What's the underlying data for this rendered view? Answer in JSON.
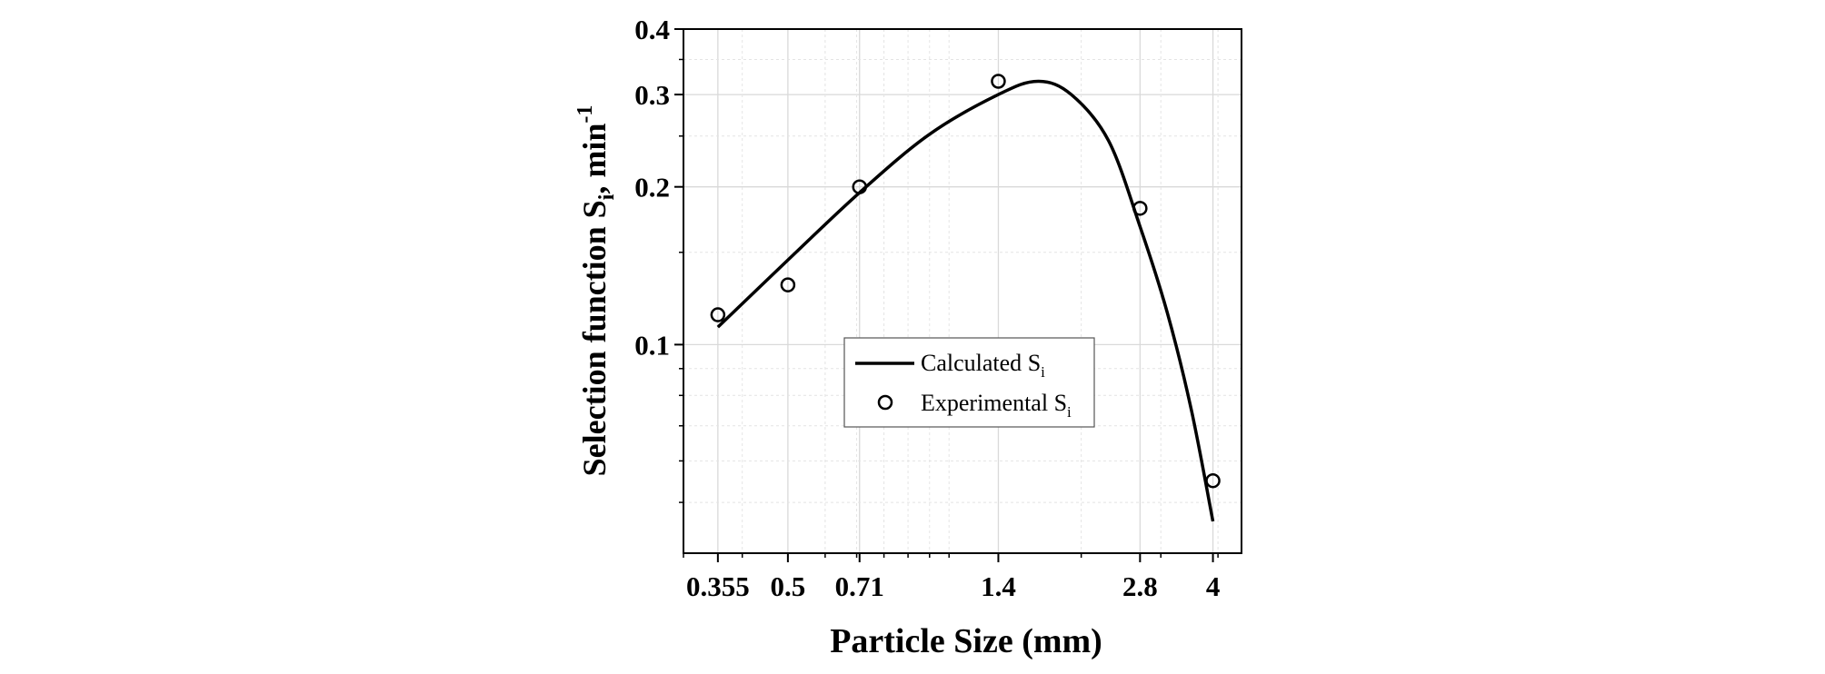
{
  "chart_data": {
    "type": "line",
    "title": "",
    "xlabel": "Particle Size (mm)",
    "ylabel": {
      "main": "Selection function S",
      "subscript": "i",
      "unit": ", min",
      "superscript": "-1"
    },
    "x_scale": "log",
    "y_scale": "log",
    "xlim": [
      0.3,
      4.6
    ],
    "ylim": [
      0.04,
      0.4
    ],
    "x_ticks": [
      0.355,
      0.5,
      0.71,
      1.4,
      2.8,
      4
    ],
    "x_tick_labels": [
      "0.355",
      "0.5",
      "0.71",
      "1.4",
      "2.8",
      "4"
    ],
    "y_ticks": [
      0.1,
      0.2,
      0.3,
      0.4
    ],
    "y_tick_labels": [
      "0.1",
      "0.2",
      "0.3",
      "0.4"
    ],
    "grid": true,
    "legend_position": "center",
    "series": [
      {
        "name": "Calculated",
        "name_subscript": "i",
        "style": "line",
        "color": "#000000",
        "x": [
          0.355,
          0.5,
          0.71,
          1.0,
          1.4,
          1.7,
          2.0,
          2.4,
          2.8,
          3.2,
          3.6,
          4.0
        ],
        "values": [
          0.108,
          0.145,
          0.195,
          0.252,
          0.3,
          0.318,
          0.3,
          0.245,
          0.168,
          0.115,
          0.075,
          0.046
        ]
      },
      {
        "name": "Experimental",
        "name_subscript": "i",
        "style": "markers",
        "marker": "open-circle",
        "color": "#000000",
        "x": [
          0.355,
          0.5,
          0.71,
          1.4,
          2.8,
          4.0
        ],
        "values": [
          0.114,
          0.13,
          0.2,
          0.318,
          0.182,
          0.055
        ]
      }
    ]
  }
}
